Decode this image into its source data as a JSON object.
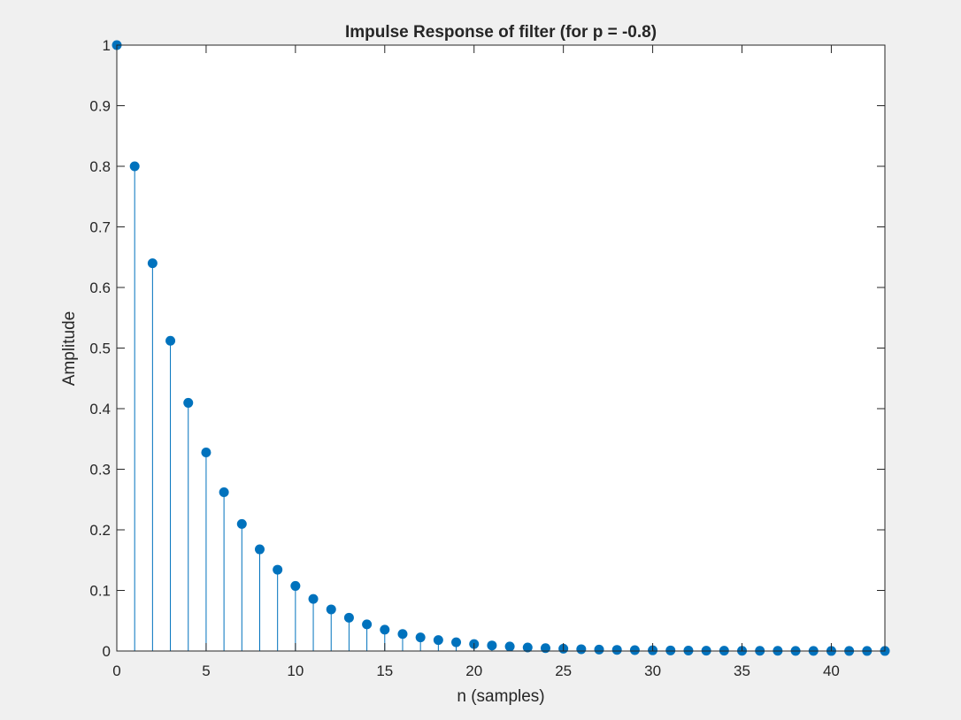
{
  "chart_data": {
    "type": "stem",
    "title": "Impulse Response of filter (for p = -0.8)",
    "xlabel": "n (samples)",
    "ylabel": "Amplitude",
    "xlim": [
      0,
      43
    ],
    "ylim": [
      0,
      1
    ],
    "xticks": [
      0,
      5,
      10,
      15,
      20,
      25,
      30,
      35,
      40
    ],
    "yticks": [
      0,
      0.1,
      0.2,
      0.3,
      0.4,
      0.5,
      0.6,
      0.7,
      0.8,
      0.9,
      1
    ],
    "ytick_labels": [
      "0",
      "0.1",
      "0.2",
      "0.3",
      "0.4",
      "0.5",
      "0.6",
      "0.7",
      "0.8",
      "0.9",
      "1"
    ],
    "grid": false,
    "color": "#0072bd",
    "n": [
      0,
      1,
      2,
      3,
      4,
      5,
      6,
      7,
      8,
      9,
      10,
      11,
      12,
      13,
      14,
      15,
      16,
      17,
      18,
      19,
      20,
      21,
      22,
      23,
      24,
      25,
      26,
      27,
      28,
      29,
      30,
      31,
      32,
      33,
      34,
      35,
      36,
      37,
      38,
      39,
      40,
      41,
      42,
      43
    ],
    "values": [
      1,
      0.8,
      0.64,
      0.512,
      0.4096,
      0.3277,
      0.2621,
      0.2097,
      0.1678,
      0.1342,
      0.1074,
      0.0859,
      0.0687,
      0.055,
      0.044,
      0.0352,
      0.0281,
      0.0225,
      0.018,
      0.0144,
      0.0115,
      0.0092,
      0.0074,
      0.0059,
      0.0047,
      0.0038,
      0.003,
      0.0024,
      0.0019,
      0.0015,
      0.0012,
      0.001,
      0.0008,
      0.0006,
      0.0005,
      0.0004,
      0.0003,
      0.0003,
      0.0002,
      0.0002,
      0.0001,
      0.0001,
      0.0001,
      0.0001
    ]
  }
}
